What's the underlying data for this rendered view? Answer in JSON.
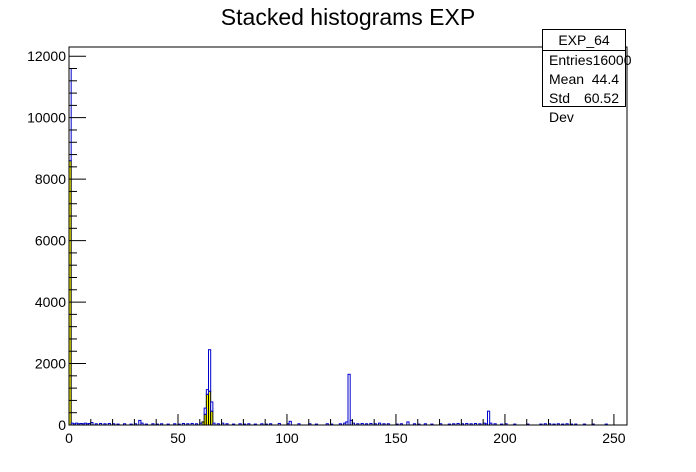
{
  "chart_data": {
    "type": "bar",
    "title": "Stacked histograms EXP",
    "xlabel": "",
    "ylabel": "",
    "xlim": [
      0,
      256
    ],
    "ylim": [
      0,
      12300
    ],
    "x_ticks": [
      0,
      50,
      100,
      150,
      200,
      250
    ],
    "y_ticks": [
      0,
      2000,
      4000,
      6000,
      8000,
      10000,
      12000
    ],
    "bin_width": 1,
    "series": [
      {
        "color": "#ffff00",
        "outline": "#000000",
        "points": [
          {
            "x": 0,
            "y": 8600
          },
          {
            "x": 61,
            "y": 100
          },
          {
            "x": 62,
            "y": 350
          },
          {
            "x": 63,
            "y": 1000
          },
          {
            "x": 64,
            "y": 1100
          },
          {
            "x": 65,
            "y": 450
          }
        ]
      },
      {
        "color": "#ffffff",
        "outline": "#0000cc",
        "points": [
          {
            "x": 0,
            "y": 3000
          },
          {
            "x": 1,
            "y": 60
          },
          {
            "x": 2,
            "y": 40
          },
          {
            "x": 3,
            "y": 60
          },
          {
            "x": 4,
            "y": 40
          },
          {
            "x": 5,
            "y": 50
          },
          {
            "x": 6,
            "y": 40
          },
          {
            "x": 7,
            "y": 60
          },
          {
            "x": 8,
            "y": 40
          },
          {
            "x": 9,
            "y": 50
          },
          {
            "x": 10,
            "y": 80
          },
          {
            "x": 12,
            "y": 40
          },
          {
            "x": 14,
            "y": 50
          },
          {
            "x": 16,
            "y": 40
          },
          {
            "x": 18,
            "y": 50
          },
          {
            "x": 20,
            "y": 40
          },
          {
            "x": 22,
            "y": 30
          },
          {
            "x": 25,
            "y": 40
          },
          {
            "x": 28,
            "y": 30
          },
          {
            "x": 30,
            "y": 40
          },
          {
            "x": 32,
            "y": 150
          },
          {
            "x": 33,
            "y": 60
          },
          {
            "x": 35,
            "y": 30
          },
          {
            "x": 38,
            "y": 40
          },
          {
            "x": 40,
            "y": 30
          },
          {
            "x": 42,
            "y": 40
          },
          {
            "x": 45,
            "y": 30
          },
          {
            "x": 48,
            "y": 40
          },
          {
            "x": 50,
            "y": 30
          },
          {
            "x": 52,
            "y": 50
          },
          {
            "x": 54,
            "y": 40
          },
          {
            "x": 56,
            "y": 50
          },
          {
            "x": 58,
            "y": 40
          },
          {
            "x": 60,
            "y": 60
          },
          {
            "x": 62,
            "y": 200
          },
          {
            "x": 63,
            "y": 150
          },
          {
            "x": 64,
            "y": 1350
          },
          {
            "x": 65,
            "y": 300
          },
          {
            "x": 66,
            "y": 60
          },
          {
            "x": 68,
            "y": 40
          },
          {
            "x": 70,
            "y": 60
          },
          {
            "x": 72,
            "y": 40
          },
          {
            "x": 75,
            "y": 30
          },
          {
            "x": 78,
            "y": 40
          },
          {
            "x": 80,
            "y": 30
          },
          {
            "x": 82,
            "y": 40
          },
          {
            "x": 85,
            "y": 30
          },
          {
            "x": 88,
            "y": 40
          },
          {
            "x": 90,
            "y": 30
          },
          {
            "x": 92,
            "y": 40
          },
          {
            "x": 96,
            "y": 50
          },
          {
            "x": 100,
            "y": 40
          },
          {
            "x": 101,
            "y": 120
          },
          {
            "x": 105,
            "y": 40
          },
          {
            "x": 110,
            "y": 40
          },
          {
            "x": 113,
            "y": 30
          },
          {
            "x": 118,
            "y": 40
          },
          {
            "x": 120,
            "y": 30
          },
          {
            "x": 124,
            "y": 40
          },
          {
            "x": 126,
            "y": 60
          },
          {
            "x": 127,
            "y": 100
          },
          {
            "x": 128,
            "y": 1650
          },
          {
            "x": 129,
            "y": 150
          },
          {
            "x": 130,
            "y": 60
          },
          {
            "x": 132,
            "y": 40
          },
          {
            "x": 134,
            "y": 50
          },
          {
            "x": 136,
            "y": 40
          },
          {
            "x": 138,
            "y": 50
          },
          {
            "x": 140,
            "y": 40
          },
          {
            "x": 142,
            "y": 60
          },
          {
            "x": 144,
            "y": 40
          },
          {
            "x": 146,
            "y": 40
          },
          {
            "x": 150,
            "y": 30
          },
          {
            "x": 152,
            "y": 40
          },
          {
            "x": 155,
            "y": 100
          },
          {
            "x": 158,
            "y": 40
          },
          {
            "x": 160,
            "y": 30
          },
          {
            "x": 163,
            "y": 40
          },
          {
            "x": 166,
            "y": 30
          },
          {
            "x": 170,
            "y": 40
          },
          {
            "x": 174,
            "y": 30
          },
          {
            "x": 176,
            "y": 40
          },
          {
            "x": 178,
            "y": 50
          },
          {
            "x": 180,
            "y": 40
          },
          {
            "x": 182,
            "y": 50
          },
          {
            "x": 184,
            "y": 40
          },
          {
            "x": 186,
            "y": 50
          },
          {
            "x": 188,
            "y": 40
          },
          {
            "x": 190,
            "y": 60
          },
          {
            "x": 191,
            "y": 40
          },
          {
            "x": 192,
            "y": 450
          },
          {
            "x": 193,
            "y": 60
          },
          {
            "x": 195,
            "y": 40
          },
          {
            "x": 198,
            "y": 30
          },
          {
            "x": 200,
            "y": 40
          },
          {
            "x": 204,
            "y": 30
          },
          {
            "x": 210,
            "y": 30
          },
          {
            "x": 216,
            "y": 30
          },
          {
            "x": 218,
            "y": 40
          },
          {
            "x": 220,
            "y": 40
          },
          {
            "x": 222,
            "y": 30
          },
          {
            "x": 224,
            "y": 40
          },
          {
            "x": 226,
            "y": 30
          },
          {
            "x": 228,
            "y": 40
          },
          {
            "x": 230,
            "y": 30
          },
          {
            "x": 232,
            "y": 30
          },
          {
            "x": 236,
            "y": 30
          },
          {
            "x": 240,
            "y": 30
          },
          {
            "x": 246,
            "y": 30
          }
        ]
      }
    ]
  },
  "stats": {
    "name": "EXP_64",
    "rows": [
      {
        "label": "Entries",
        "value": "16000"
      },
      {
        "label": "Mean",
        "value": "44.4"
      },
      {
        "label": "Std Dev",
        "value": "60.52"
      }
    ]
  }
}
